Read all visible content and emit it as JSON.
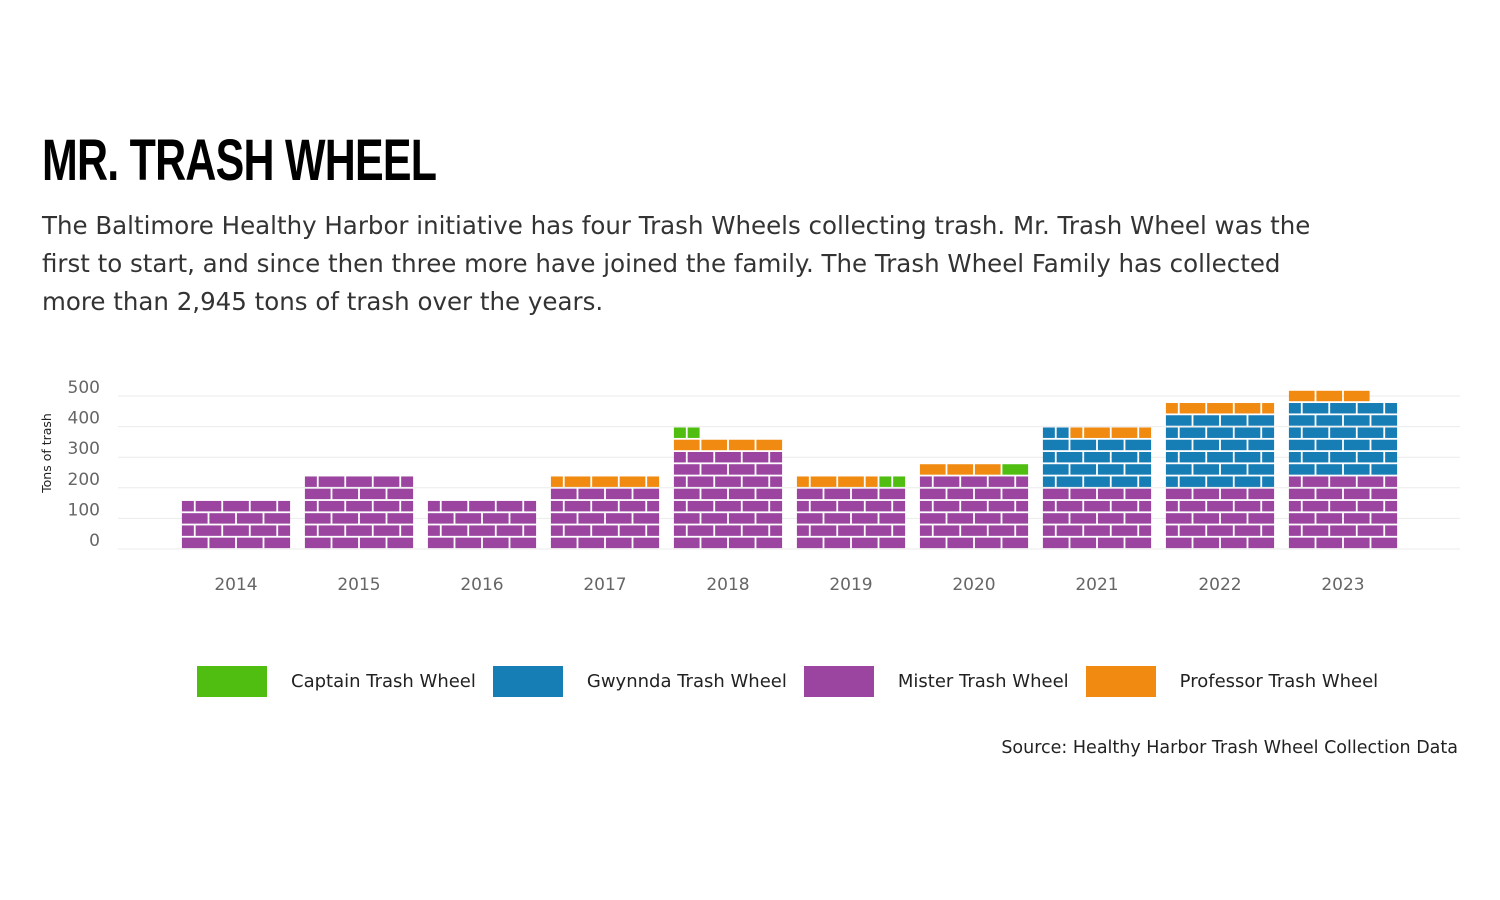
{
  "header": {
    "title": "MR. TRASH WHEEL",
    "subtitle": "The Baltimore Healthy Harbor initiative has four Trash Wheels collecting trash. Mr. Trash Wheel was the first to start, and since then three more have joined the family. The Trash Wheel Family has collected more than 2,945 tons of trash over the years."
  },
  "source": "Source: Healthy Harbor Trash Wheel Collection Data",
  "chart_data": {
    "type": "bar",
    "stacked": true,
    "style": "brick waffle (one brick ≈ 10 tons)",
    "title": "MR. TRASH WHEEL",
    "ylabel": "Tons of trash",
    "xlabel": "",
    "ylim": [
      0,
      500
    ],
    "yticks": [
      "500",
      "400",
      "300",
      "200",
      "100",
      "0"
    ],
    "grid": true,
    "legend_position": "bottom",
    "categories": [
      "2014",
      "2015",
      "2016",
      "2017",
      "2018",
      "2019",
      "2020",
      "2021",
      "2022",
      "2023"
    ],
    "series": [
      {
        "name": "Mister Trash Wheel",
        "color": "#9b45a1",
        "values": [
          160,
          240,
          160,
          200,
          320,
          200,
          240,
          200,
          200,
          240
        ]
      },
      {
        "name": "Gwynnda Trash Wheel",
        "color": "#177db5",
        "values": [
          0,
          0,
          0,
          0,
          0,
          0,
          0,
          170,
          240,
          240
        ]
      },
      {
        "name": "Professor Trash Wheel",
        "color": "#f08a10",
        "values": [
          0,
          0,
          0,
          40,
          40,
          30,
          30,
          30,
          40,
          30
        ]
      },
      {
        "name": "Captain Trash Wheel",
        "color": "#4fbe10",
        "values": [
          0,
          0,
          0,
          0,
          10,
          10,
          10,
          0,
          0,
          0
        ]
      }
    ],
    "legend": [
      "Captain Trash Wheel",
      "Gwynnda Trash Wheel",
      "Mister Trash Wheel",
      "Professor Trash Wheel"
    ]
  }
}
